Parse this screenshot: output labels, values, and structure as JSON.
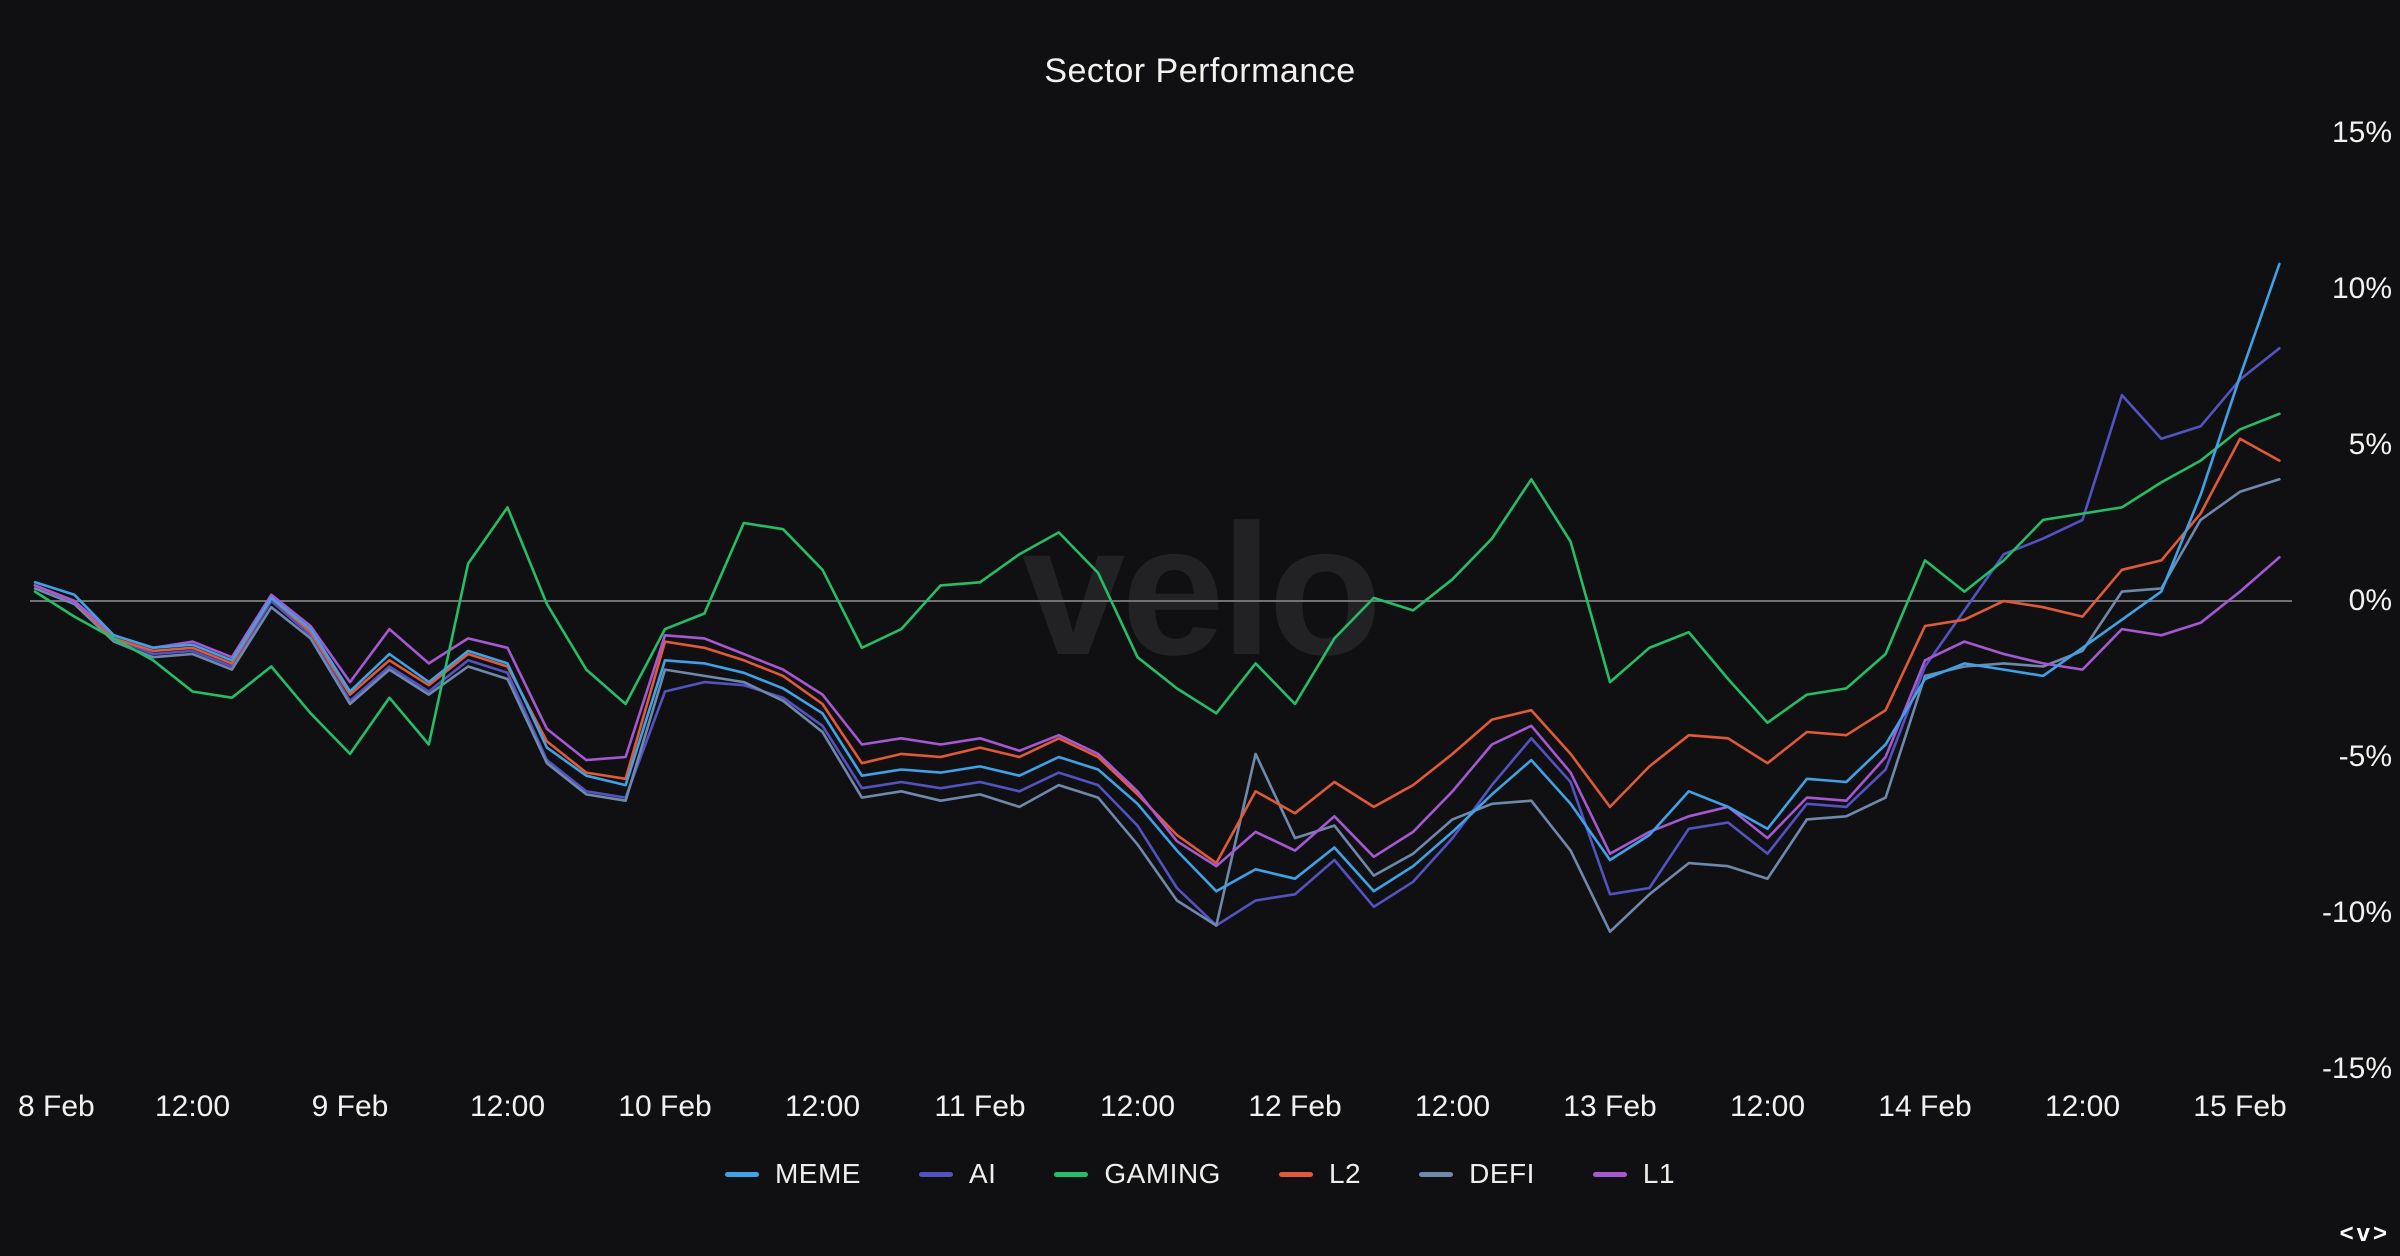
{
  "title": "Sector Performance",
  "watermark_text": "velo",
  "corner_mark": "<v>",
  "colors": {
    "background": "#101012",
    "text": "#f2f1ef",
    "watermark": "#222224",
    "zero_line": "#6f7276"
  },
  "chart_data": {
    "type": "line",
    "title": "Sector Performance",
    "xlabel": "",
    "ylabel": "",
    "ylim": [
      -15,
      15
    ],
    "grid": "zero-line-only",
    "legend_position": "bottom",
    "y_axis_side": "right",
    "hours_per_point": 3,
    "x_ticks": [
      {
        "t": 0,
        "label": "8 Feb"
      },
      {
        "t": 12,
        "label": "12:00"
      },
      {
        "t": 24,
        "label": "9 Feb"
      },
      {
        "t": 36,
        "label": "12:00"
      },
      {
        "t": 48,
        "label": "10 Feb"
      },
      {
        "t": 60,
        "label": "12:00"
      },
      {
        "t": 72,
        "label": "11 Feb"
      },
      {
        "t": 84,
        "label": "12:00"
      },
      {
        "t": 96,
        "label": "12 Feb"
      },
      {
        "t": 108,
        "label": "12:00"
      },
      {
        "t": 120,
        "label": "13 Feb"
      },
      {
        "t": 132,
        "label": "12:00"
      },
      {
        "t": 144,
        "label": "14 Feb"
      },
      {
        "t": 156,
        "label": "12:00"
      },
      {
        "t": 168,
        "label": "15 Feb"
      }
    ],
    "y_ticks": [
      {
        "value": 15,
        "label": "15%"
      },
      {
        "value": 10,
        "label": "10%"
      },
      {
        "value": 5,
        "label": "5%"
      },
      {
        "value": 0,
        "label": "0%"
      },
      {
        "value": -5,
        "label": "-5%"
      },
      {
        "value": -10,
        "label": "-10%"
      },
      {
        "value": -15,
        "label": "-15%"
      }
    ],
    "draw_order": [
      1,
      4,
      3,
      5,
      2,
      0
    ],
    "series": [
      {
        "name": "MEME",
        "color": "#3fa2e6",
        "values": [
          0.6,
          0.2,
          -1.1,
          -1.5,
          -1.4,
          -1.9,
          0.1,
          -0.9,
          -2.9,
          -1.7,
          -2.6,
          -1.6,
          -2.0,
          -4.7,
          -5.6,
          -5.9,
          -1.9,
          -2.0,
          -2.3,
          -2.8,
          -3.6,
          -5.6,
          -5.4,
          -5.5,
          -5.3,
          -5.6,
          -5.0,
          -5.4,
          -6.5,
          -8.0,
          -9.3,
          -8.6,
          -8.9,
          -7.9,
          -9.3,
          -8.5,
          -7.4,
          -6.2,
          -5.1,
          -6.5,
          -8.3,
          -7.5,
          -6.1,
          -6.6,
          -7.3,
          -5.7,
          -5.8,
          -4.6,
          -2.5,
          -2.0,
          -2.2,
          -2.4,
          -1.5,
          -0.6,
          0.3,
          3.4,
          7.2,
          10.8
        ]
      },
      {
        "name": "AI",
        "color": "#5352c0",
        "values": [
          0.5,
          0.0,
          -1.2,
          -1.7,
          -1.6,
          -2.1,
          0.0,
          -1.1,
          -3.2,
          -2.1,
          -2.9,
          -1.9,
          -2.3,
          -5.1,
          -6.1,
          -6.3,
          -2.9,
          -2.6,
          -2.7,
          -3.1,
          -4.0,
          -6.0,
          -5.8,
          -6.0,
          -5.8,
          -6.1,
          -5.5,
          -5.9,
          -7.2,
          -9.2,
          -10.4,
          -9.6,
          -9.4,
          -8.3,
          -9.8,
          -9.0,
          -7.6,
          -5.9,
          -4.4,
          -5.8,
          -9.4,
          -9.2,
          -7.3,
          -7.1,
          -8.1,
          -6.5,
          -6.6,
          -5.4,
          -2.1,
          -0.3,
          1.5,
          2.0,
          2.6,
          6.6,
          5.2,
          5.6,
          7.1,
          8.1
        ]
      },
      {
        "name": "GAMING",
        "color": "#24bd68",
        "values": [
          0.3,
          -0.5,
          -1.2,
          -1.9,
          -2.9,
          -3.1,
          -2.1,
          -3.6,
          -4.9,
          -3.1,
          -4.6,
          1.2,
          3.0,
          -0.1,
          -2.2,
          -3.3,
          -0.9,
          -0.4,
          2.5,
          2.3,
          1.0,
          -1.5,
          -0.9,
          0.5,
          0.6,
          1.5,
          2.2,
          0.9,
          -1.8,
          -2.8,
          -3.6,
          -2.0,
          -3.3,
          -1.2,
          0.1,
          -0.3,
          0.7,
          2.0,
          3.9,
          1.9,
          -2.6,
          -1.5,
          -1.0,
          -2.5,
          -3.9,
          -3.0,
          -2.8,
          -1.7,
          1.3,
          0.3,
          1.3,
          2.6,
          2.8,
          3.0,
          3.8,
          4.5,
          5.5,
          6.0
        ]
      },
      {
        "name": "L2",
        "color": "#e05a38",
        "values": [
          0.5,
          0.0,
          -1.2,
          -1.6,
          -1.5,
          -2.0,
          0.1,
          -1.0,
          -3.0,
          -1.9,
          -2.7,
          -1.7,
          -2.1,
          -4.5,
          -5.5,
          -5.7,
          -1.3,
          -1.5,
          -1.9,
          -2.4,
          -3.3,
          -5.2,
          -4.9,
          -5.0,
          -4.7,
          -5.0,
          -4.4,
          -5.0,
          -6.2,
          -7.5,
          -8.4,
          -6.1,
          -6.8,
          -5.8,
          -6.6,
          -5.9,
          -4.9,
          -3.8,
          -3.5,
          -4.9,
          -6.6,
          -5.3,
          -4.3,
          -4.4,
          -5.2,
          -4.2,
          -4.3,
          -3.5,
          -0.8,
          -0.6,
          0.0,
          -0.2,
          -0.5,
          1.0,
          1.3,
          2.8,
          5.2,
          4.5
        ]
      },
      {
        "name": "DEFI",
        "color": "#6e89ab",
        "values": [
          0.4,
          -0.1,
          -1.3,
          -1.8,
          -1.7,
          -2.2,
          -0.2,
          -1.2,
          -3.3,
          -2.2,
          -3.0,
          -2.1,
          -2.5,
          -5.2,
          -6.2,
          -6.4,
          -2.2,
          -2.4,
          -2.6,
          -3.2,
          -4.2,
          -6.3,
          -6.1,
          -6.4,
          -6.2,
          -6.6,
          -5.9,
          -6.3,
          -7.8,
          -9.6,
          -10.4,
          -4.9,
          -7.6,
          -7.2,
          -8.8,
          -8.1,
          -7.0,
          -6.5,
          -6.4,
          -8.0,
          -10.6,
          -9.4,
          -8.4,
          -8.5,
          -8.9,
          -7.0,
          -6.9,
          -6.3,
          -2.4,
          -2.1,
          -2.0,
          -2.1,
          -1.6,
          0.3,
          0.4,
          2.6,
          3.5,
          3.9
        ]
      },
      {
        "name": "L1",
        "color": "#a558d2",
        "values": [
          0.5,
          0.0,
          -1.1,
          -1.5,
          -1.3,
          -1.8,
          0.2,
          -0.8,
          -2.6,
          -0.9,
          -2.0,
          -1.2,
          -1.5,
          -4.1,
          -5.1,
          -5.0,
          -1.1,
          -1.2,
          -1.7,
          -2.2,
          -3.0,
          -4.6,
          -4.4,
          -4.6,
          -4.4,
          -4.8,
          -4.3,
          -4.9,
          -6.1,
          -7.7,
          -8.5,
          -7.4,
          -8.0,
          -6.9,
          -8.2,
          -7.4,
          -6.1,
          -4.6,
          -4.0,
          -5.5,
          -8.1,
          -7.4,
          -6.9,
          -6.6,
          -7.6,
          -6.3,
          -6.4,
          -5.0,
          -1.9,
          -1.3,
          -1.7,
          -2.0,
          -2.2,
          -0.9,
          -1.1,
          -0.7,
          0.3,
          1.4
        ]
      }
    ]
  }
}
